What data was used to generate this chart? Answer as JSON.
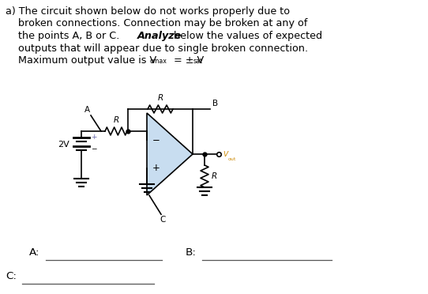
{
  "title_line1": "a) The circuit shown below do not works properly due to",
  "title_line2": "    broken connections. Connection may be broken at any of",
  "title_line3_pre": "    the points A, B or C.  ",
  "title_line3_bold": "Analyze",
  "title_line3_rest": " below the values of expected",
  "title_line4": "    outputs that will appear due to single broken connection.",
  "title_line5_pre": "    Maximum output value is V",
  "title_line5_sub1": "omax",
  "title_line5_mid": " = ± V",
  "title_line5_sub2": "sat",
  "label_A": "A",
  "label_B": "B",
  "label_C": "C",
  "label_R_top": "R",
  "label_R_in": "R",
  "label_R_out": "R",
  "label_2V": "2V",
  "label_Vout": "V",
  "label_Vout_sub": "out",
  "vout_color": "#cc8800",
  "answer_A": "A:",
  "answer_B": "B:",
  "answer_C": "C:",
  "bg_color": "#ffffff",
  "text_color": "#000000",
  "circuit_color": "#000000",
  "opamp_fill": "#c8ddf0",
  "font_size_body": 9.2,
  "font_size_circuit": 7.5,
  "line_width": 1.2
}
